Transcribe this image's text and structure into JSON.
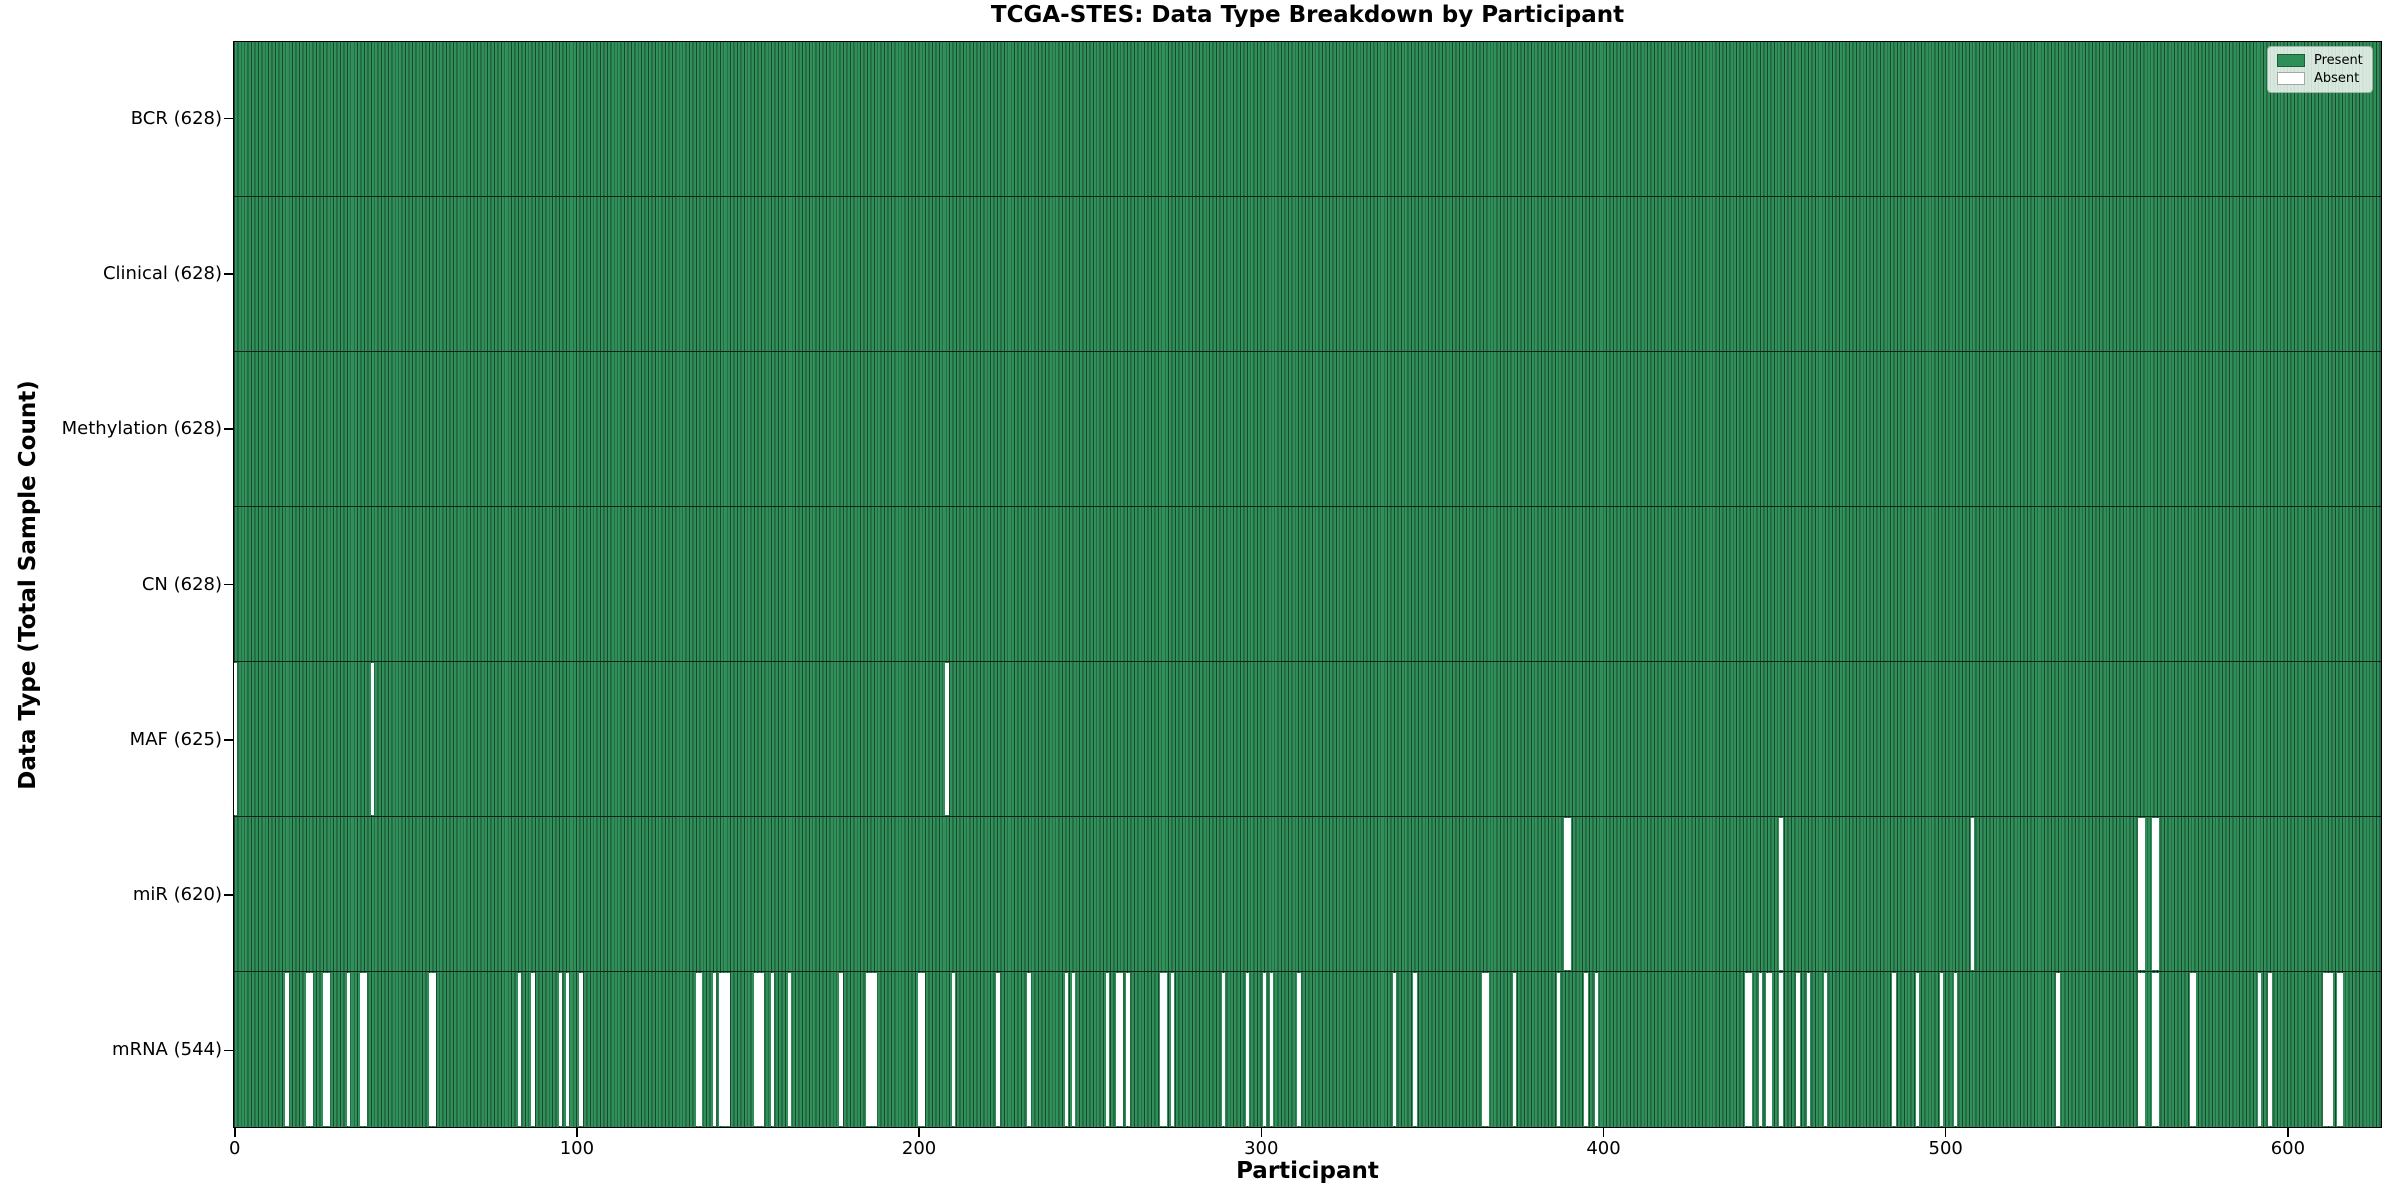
{
  "title": "TCGA-STES: Data Type Breakdown by Participant",
  "xlabel": "Participant",
  "ylabel": "Data Type (Total Sample Count)",
  "legend": {
    "items": [
      {
        "label": "Present",
        "color": "#2f8f58"
      },
      {
        "label": "Absent",
        "color": "#ffffff"
      }
    ],
    "position": "upper right"
  },
  "chart_data": {
    "type": "heatmap",
    "subtype": "presence-absence-matrix",
    "n_participants": 628,
    "xlim": [
      -0.5,
      627.5
    ],
    "x_ticks": [
      0,
      100,
      200,
      300,
      400,
      500,
      600
    ],
    "colors": {
      "present": "#2f8f58",
      "absent": "#ffffff",
      "cell_edge": "#1c3b2a"
    },
    "grid": false,
    "rows": [
      {
        "label": "BCR (628)",
        "name": "BCR",
        "present_count": 628,
        "absent_participants": []
      },
      {
        "label": "Clinical (628)",
        "name": "Clinical",
        "present_count": 628,
        "absent_participants": []
      },
      {
        "label": "Methylation (628)",
        "name": "Methylation",
        "present_count": 628,
        "absent_participants": []
      },
      {
        "label": "CN (628)",
        "name": "CN",
        "present_count": 628,
        "absent_participants": []
      },
      {
        "label": "MAF (625)",
        "name": "MAF",
        "present_count": 625,
        "absent_participants": [
          0,
          40,
          208
        ]
      },
      {
        "label": "miR (620)",
        "name": "miR",
        "present_count": 620,
        "absent_participants": [
          389,
          390,
          452,
          508,
          557,
          558,
          561,
          562
        ]
      },
      {
        "label": "mRNA (544)",
        "name": "mRNA",
        "present_count": 544,
        "absent_participants": [
          15,
          21,
          22,
          26,
          27,
          33,
          37,
          38,
          57,
          58,
          83,
          87,
          95,
          97,
          101,
          135,
          136,
          140,
          142,
          143,
          144,
          152,
          153,
          154,
          157,
          162,
          177,
          185,
          186,
          187,
          200,
          201,
          210,
          223,
          232,
          243,
          245,
          255,
          258,
          259,
          261,
          271,
          272,
          274,
          289,
          296,
          301,
          303,
          311,
          339,
          345,
          365,
          366,
          374,
          387,
          395,
          398,
          442,
          443,
          446,
          448,
          449,
          452,
          457,
          460,
          465,
          485,
          492,
          499,
          503,
          533,
          557,
          558,
          561,
          562,
          572,
          573,
          592,
          595,
          611,
          612,
          613,
          615,
          616
        ]
      }
    ]
  }
}
